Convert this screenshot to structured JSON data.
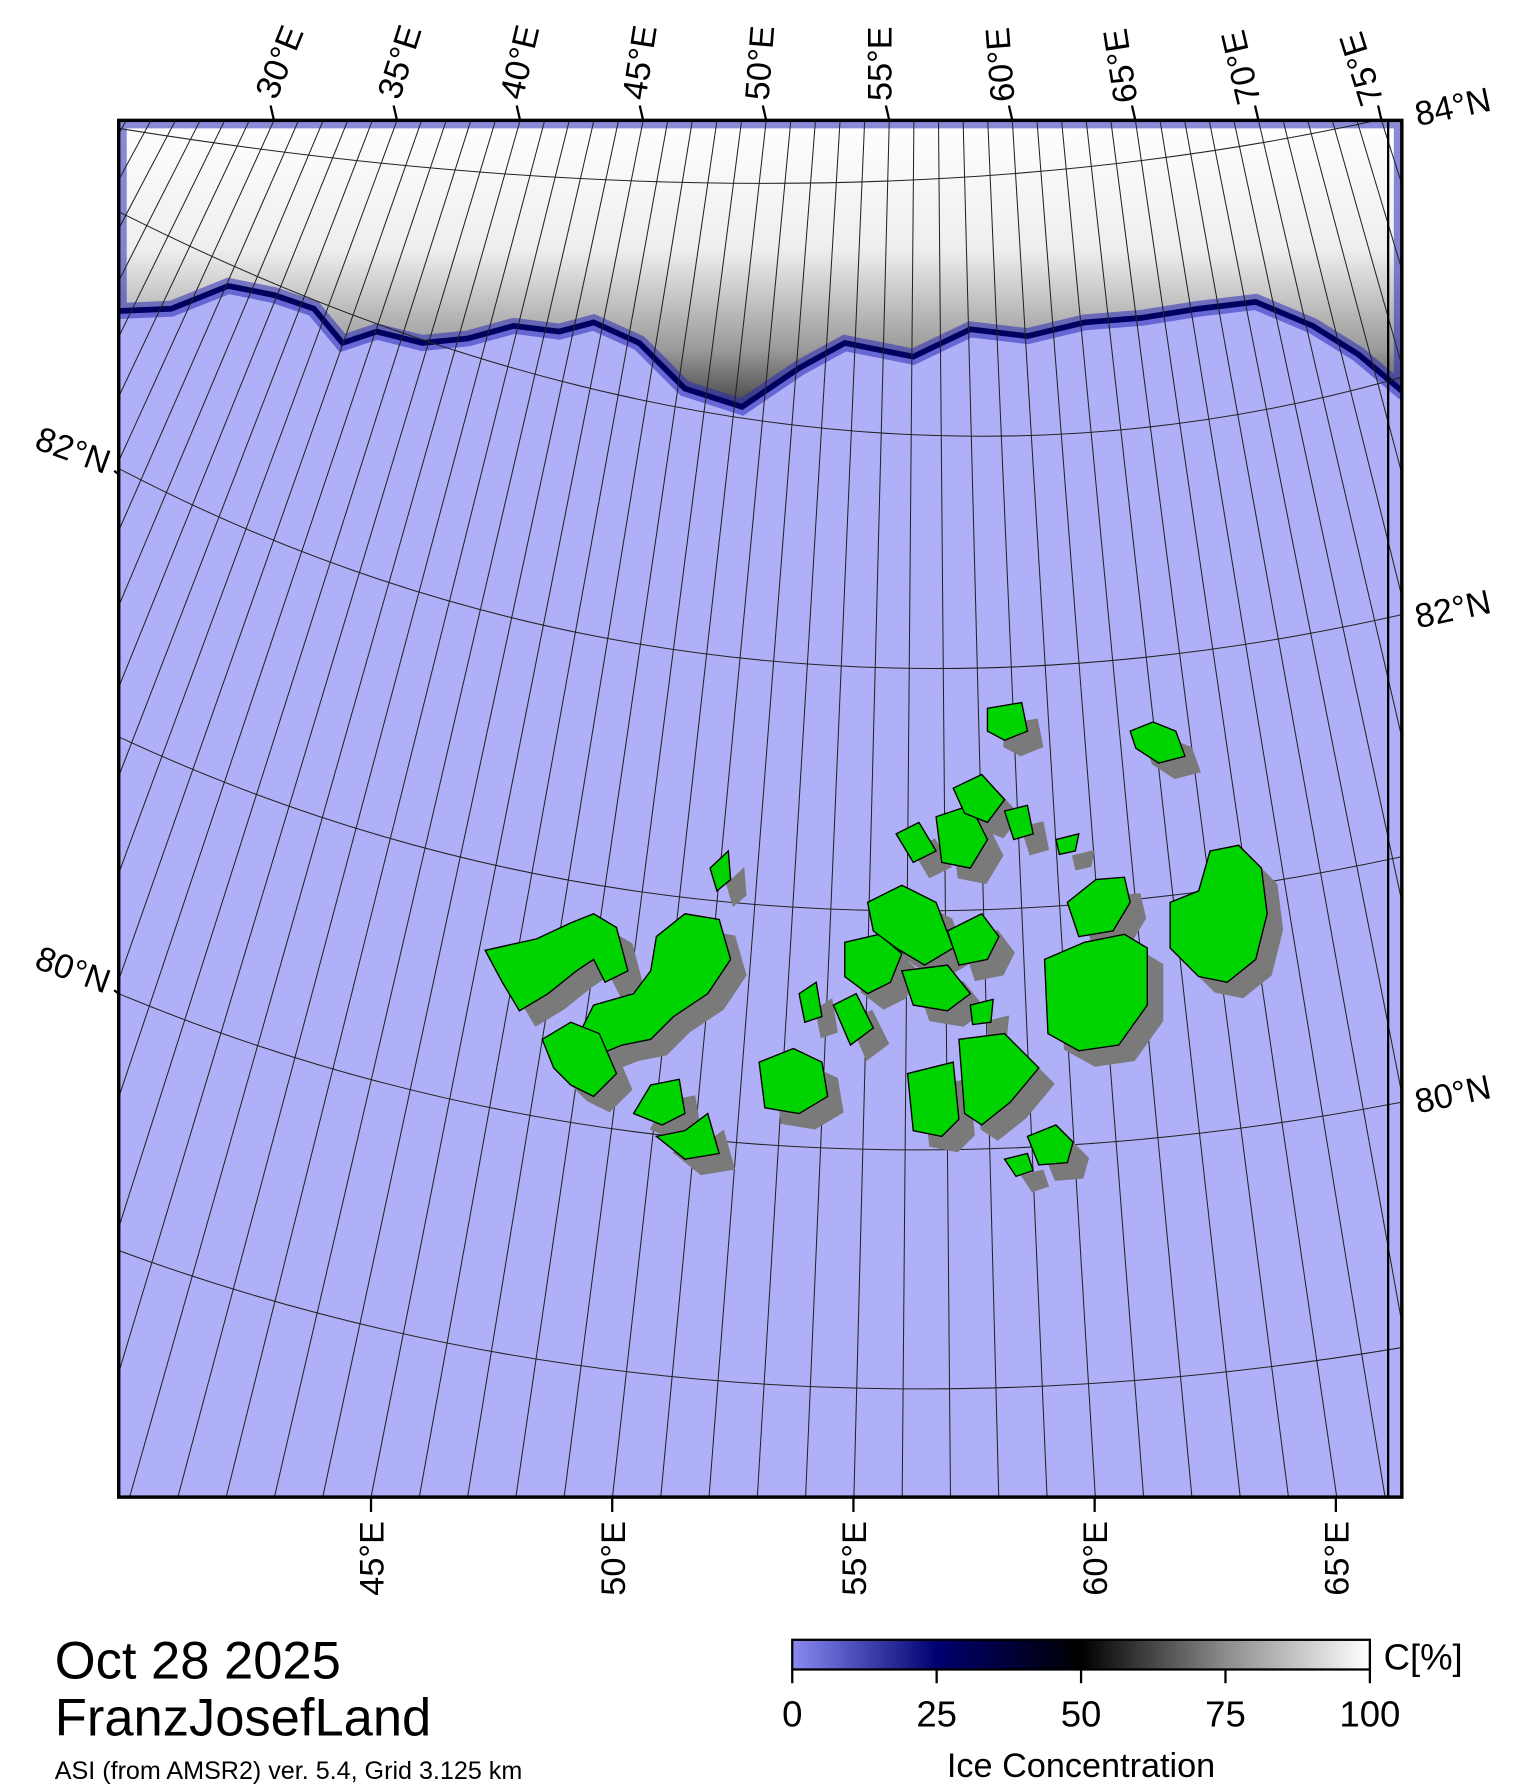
{
  "map": {
    "title": "Oct 28 2025",
    "region": "FranzJosefLand",
    "caption": "ASI (from AMSR2) ver. 5.4,  Grid 3.125 km",
    "top_labels": [
      "30°E",
      "35°E",
      "40°E",
      "45°E",
      "50°E",
      "55°E",
      "60°E",
      "65°E",
      "70°E",
      "75°E"
    ],
    "left_labels": [
      "82°N",
      "80°N"
    ],
    "right_labels": [
      "84°N",
      "82°N",
      "80°N"
    ],
    "bottom_labels": [
      "45°E",
      "50°E",
      "55°E",
      "60°E",
      "65°E"
    ],
    "colorbar": {
      "label": "Ice Concentration",
      "unit": "C[%]",
      "lim": [
        0,
        100
      ],
      "ticks": [
        0,
        25,
        50,
        75,
        100
      ],
      "colors": [
        "#8a8af2",
        "#000070",
        "#000000",
        "#8c8c8c",
        "#ffffff"
      ]
    }
  }
}
